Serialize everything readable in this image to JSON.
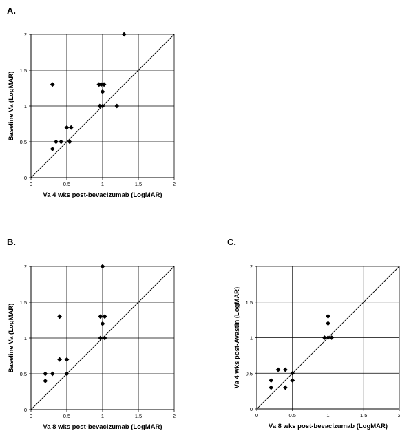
{
  "chart_data": [
    {
      "type": "scatter",
      "panel_label": "A.",
      "xlabel": "Va 4 wks post-bevacizumab (LogMAR)",
      "ylabel": "Baseline Va (LogMAR)",
      "xlim": [
        0,
        2
      ],
      "ylim": [
        0,
        2
      ],
      "xticks": [
        "0",
        "0.5",
        "1",
        "1.5",
        "2"
      ],
      "yticks": [
        "0",
        "0.5",
        "1",
        "1.5",
        "2"
      ],
      "grid": true,
      "identity_line": true,
      "points": [
        {
          "x": 0.3,
          "y": 1.3
        },
        {
          "x": 1.3,
          "y": 2.0
        },
        {
          "x": 0.95,
          "y": 1.3
        },
        {
          "x": 0.98,
          "y": 1.3
        },
        {
          "x": 1.02,
          "y": 1.3
        },
        {
          "x": 1.0,
          "y": 1.2
        },
        {
          "x": 0.96,
          "y": 1.0
        },
        {
          "x": 1.0,
          "y": 1.0
        },
        {
          "x": 1.2,
          "y": 1.0
        },
        {
          "x": 0.5,
          "y": 0.7
        },
        {
          "x": 0.56,
          "y": 0.7
        },
        {
          "x": 0.35,
          "y": 0.5
        },
        {
          "x": 0.42,
          "y": 0.5
        },
        {
          "x": 0.54,
          "y": 0.5
        },
        {
          "x": 0.3,
          "y": 0.4
        }
      ]
    },
    {
      "type": "scatter",
      "panel_label": "B.",
      "xlabel": "Va 8 wks post-bevacizumab (LogMAR)",
      "ylabel": "Baseline Va (LogMAR)",
      "xlim": [
        0,
        2
      ],
      "ylim": [
        0,
        2
      ],
      "xticks": [
        "0",
        "0.5",
        "1",
        "1.5",
        "2"
      ],
      "yticks": [
        "0",
        "0.5",
        "1",
        "1.5",
        "2"
      ],
      "grid": true,
      "identity_line": true,
      "points": [
        {
          "x": 1.0,
          "y": 2.0
        },
        {
          "x": 0.4,
          "y": 1.3
        },
        {
          "x": 0.97,
          "y": 1.3
        },
        {
          "x": 1.03,
          "y": 1.3
        },
        {
          "x": 1.0,
          "y": 1.2
        },
        {
          "x": 0.97,
          "y": 1.0
        },
        {
          "x": 1.03,
          "y": 1.0
        },
        {
          "x": 0.4,
          "y": 0.7
        },
        {
          "x": 0.5,
          "y": 0.7
        },
        {
          "x": 0.2,
          "y": 0.5
        },
        {
          "x": 0.3,
          "y": 0.5
        },
        {
          "x": 0.5,
          "y": 0.5
        },
        {
          "x": 0.2,
          "y": 0.4
        }
      ]
    },
    {
      "type": "scatter",
      "panel_label": "C.",
      "xlabel": "Va 8 wks post-bevacizumab (LogMAR)",
      "ylabel": "Va 4 wks post-Avastin (LogMAR)",
      "xlim": [
        0,
        2
      ],
      "ylim": [
        0,
        2
      ],
      "xticks": [
        "0",
        "0.5",
        "1",
        "1.5",
        "2"
      ],
      "yticks": [
        "0",
        "0.5",
        "1",
        "1.5",
        "2"
      ],
      "grid": true,
      "identity_line": true,
      "points": [
        {
          "x": 1.0,
          "y": 1.3
        },
        {
          "x": 1.0,
          "y": 1.2
        },
        {
          "x": 0.95,
          "y": 1.0
        },
        {
          "x": 1.0,
          "y": 1.0
        },
        {
          "x": 1.05,
          "y": 1.0
        },
        {
          "x": 0.3,
          "y": 0.55
        },
        {
          "x": 0.4,
          "y": 0.55
        },
        {
          "x": 0.5,
          "y": 0.5
        },
        {
          "x": 0.2,
          "y": 0.4
        },
        {
          "x": 0.5,
          "y": 0.4
        },
        {
          "x": 0.2,
          "y": 0.3
        },
        {
          "x": 0.4,
          "y": 0.3
        }
      ]
    }
  ]
}
